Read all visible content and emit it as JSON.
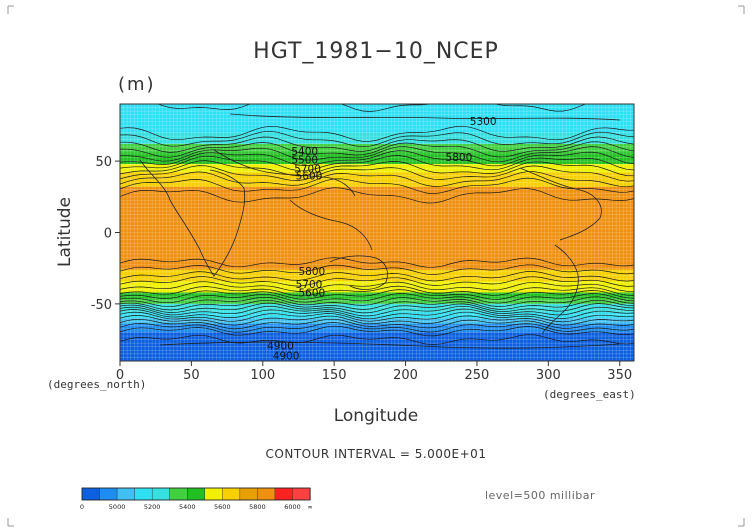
{
  "chart_data": {
    "type": "heatmap",
    "title": "HGT_1981−10_NCEP",
    "units": "(m)",
    "xlabel": "Longitude",
    "ylabel": "Latitude",
    "x_unit_label": "(degrees_east)",
    "y_unit_label": "(degrees_north)",
    "xlim": [
      0,
      360
    ],
    "ylim": [
      -90,
      90
    ],
    "x_ticks": [
      0,
      50,
      100,
      150,
      200,
      250,
      300,
      350
    ],
    "y_ticks": [
      50,
      0,
      -50
    ],
    "grid": true,
    "contour_interval_text": "CONTOUR INTERVAL = 5.000E+01",
    "level_text": "level=500 millibar",
    "contour_labels": [
      "5300",
      "5800",
      "5400",
      "5500",
      "5700",
      "5600",
      "5800",
      "5700",
      "5600",
      "4900",
      "4900"
    ],
    "colorbar": {
      "labels": [
        "0",
        "5000",
        "5200",
        "5400",
        "5600",
        "5800",
        "6000",
        "∞"
      ],
      "colors": [
        "#0b5fe0",
        "#1e8cf0",
        "#3fc0f2",
        "#2fe0f5",
        "#37e0e0",
        "#40d040",
        "#20c020",
        "#f0f000",
        "#f8d000",
        "#e8a000",
        "#f09010",
        "#ff2020",
        "#ff4040"
      ],
      "label_placement": "bottom"
    },
    "zonal_profile": [
      {
        "lat": 90,
        "value": 5250
      },
      {
        "lat": 80,
        "value": 5230
      },
      {
        "lat": 70,
        "value": 5290
      },
      {
        "lat": 60,
        "value": 5420
      },
      {
        "lat": 50,
        "value": 5580
      },
      {
        "lat": 40,
        "value": 5720
      },
      {
        "lat": 30,
        "value": 5830
      },
      {
        "lat": 20,
        "value": 5880
      },
      {
        "lat": 10,
        "value": 5885
      },
      {
        "lat": 0,
        "value": 5880
      },
      {
        "lat": -10,
        "value": 5870
      },
      {
        "lat": -20,
        "value": 5860
      },
      {
        "lat": -30,
        "value": 5760
      },
      {
        "lat": -40,
        "value": 5620
      },
      {
        "lat": -50,
        "value": 5420
      },
      {
        "lat": -60,
        "value": 5180
      },
      {
        "lat": -70,
        "value": 4980
      },
      {
        "lat": -80,
        "value": 4920
      },
      {
        "lat": -90,
        "value": 4950
      }
    ]
  }
}
